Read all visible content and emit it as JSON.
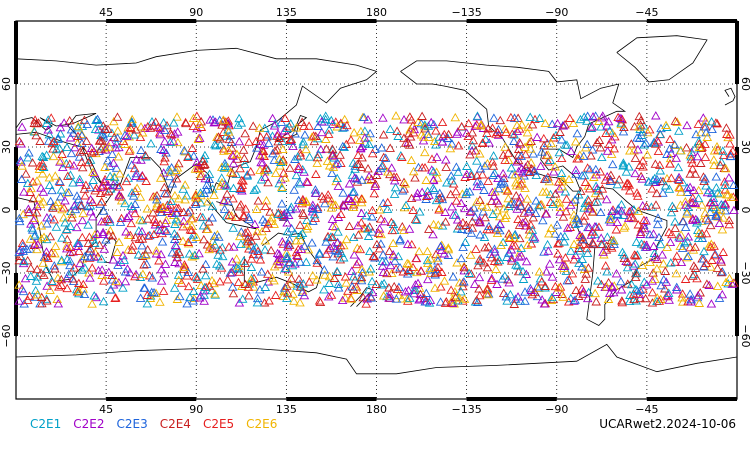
{
  "chart_data": {
    "type": "scatter",
    "title": "",
    "map_projection": "cylindrical",
    "central_longitude": 180,
    "lon_range": [
      0,
      360
    ],
    "lat_range": [
      -90,
      90
    ],
    "grid": true,
    "top_tick_labels": [
      "45",
      "90",
      "135",
      "180",
      "−135",
      "−90",
      "−45"
    ],
    "bottom_tick_labels": [
      "45",
      "90",
      "135",
      "180",
      "−135",
      "−90",
      "−45"
    ],
    "left_tick_labels": [
      "60",
      "30",
      "0",
      "−30",
      "−60"
    ],
    "right_tick_labels": [
      "60",
      "30",
      "0",
      "−30",
      "−60"
    ],
    "lon_ticks": [
      45,
      90,
      135,
      180,
      225,
      270,
      315
    ],
    "lat_ticks": [
      60,
      30,
      0,
      -30,
      -60
    ],
    "marker": "triangle-open",
    "series": [
      {
        "name": "C2E1",
        "color": "#00a0c8"
      },
      {
        "name": "C2E2",
        "color": "#a000c8"
      },
      {
        "name": "C2E3",
        "color": "#1e64dc"
      },
      {
        "name": "C2E4",
        "color": "#c81e1e"
      },
      {
        "name": "C2E5",
        "color": "#e61e1e"
      },
      {
        "name": "C2E6",
        "color": "#f0b400"
      }
    ],
    "point_lat_extent": [
      -45,
      45
    ],
    "product_label": "UCARwet2.2024-10-06"
  }
}
